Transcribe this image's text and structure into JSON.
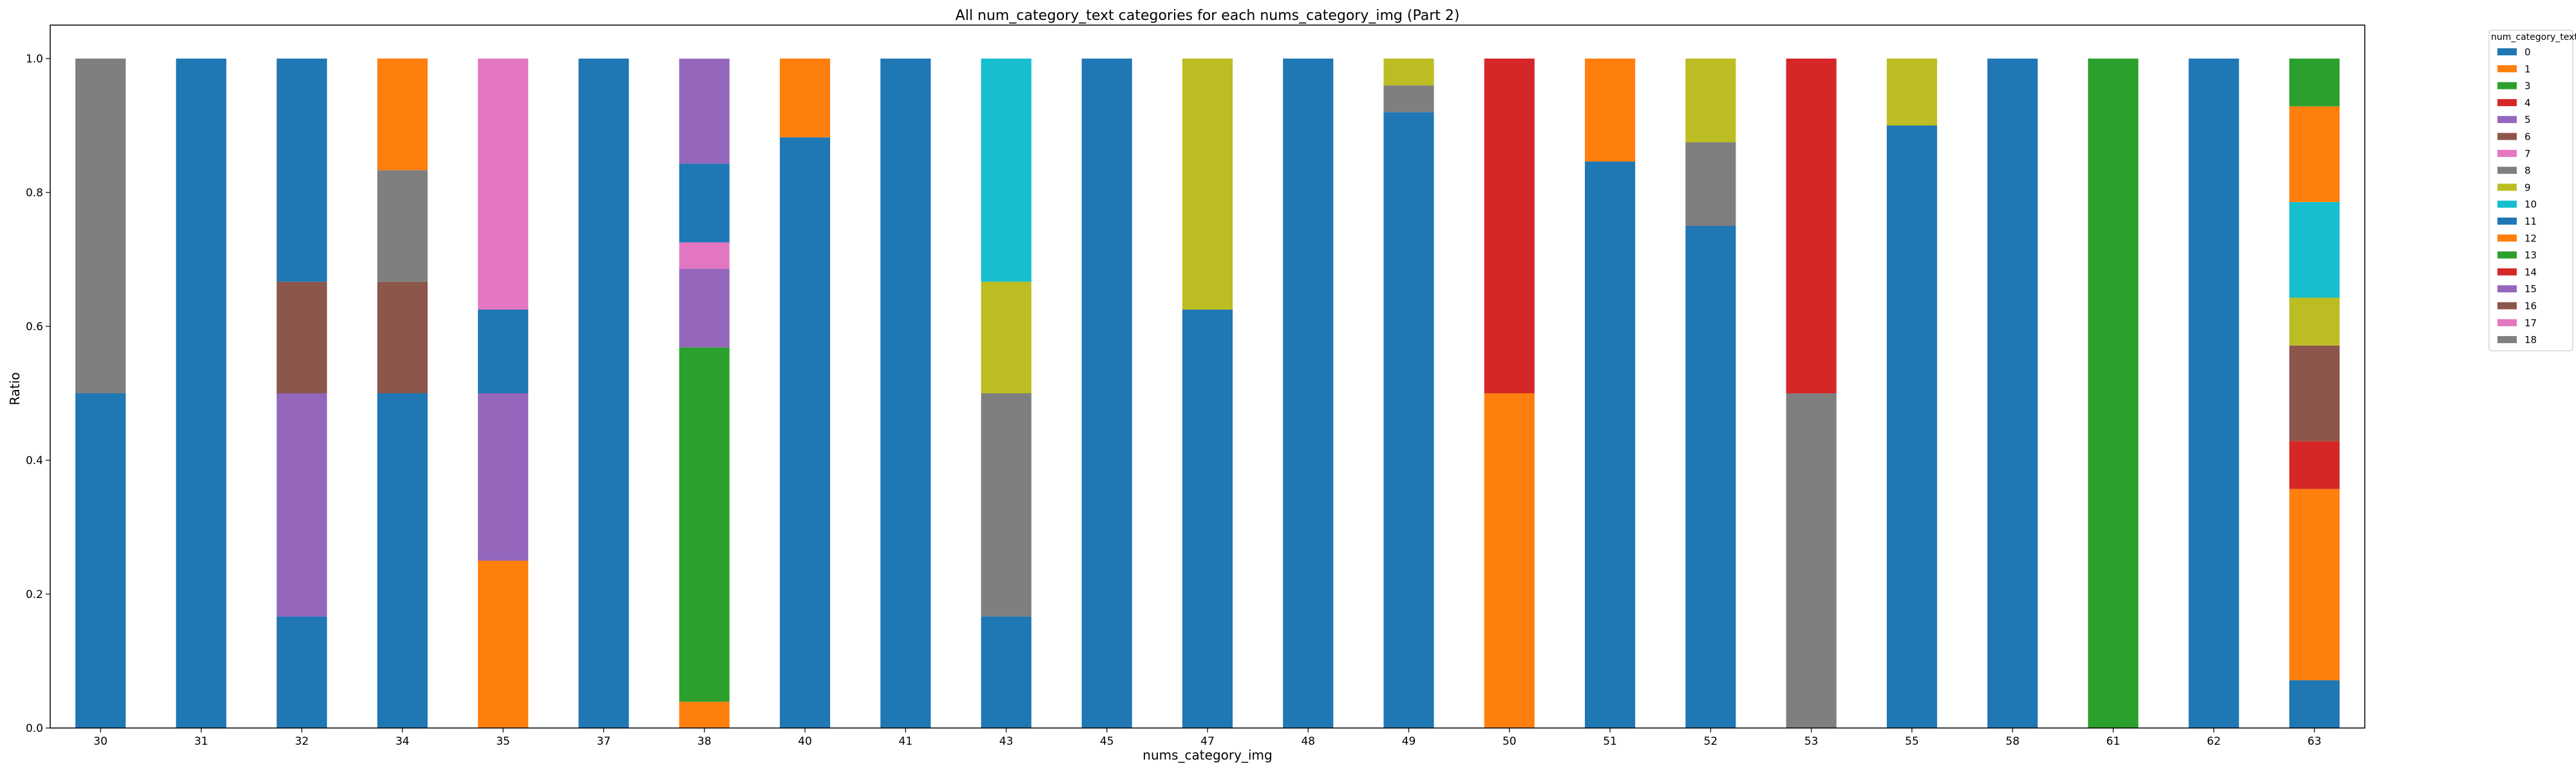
{
  "chart_data": {
    "type": "bar",
    "stacked": true,
    "title": "All num_category_text categories for each nums_category_img (Part 2)",
    "xlabel": "nums_category_img",
    "ylabel": "Ratio",
    "ylim": [
      0,
      1.05
    ],
    "yticks": [
      "0.0",
      "0.2",
      "0.4",
      "0.6",
      "0.8",
      "1.0"
    ],
    "grid": false,
    "legend": {
      "title": "num_category_text",
      "placement": "outside-top-right",
      "entries": [
        {
          "label": "0",
          "color": "#1f77b4"
        },
        {
          "label": "1",
          "color": "#ff7f0e"
        },
        {
          "label": "3",
          "color": "#2ca02c"
        },
        {
          "label": "4",
          "color": "#d62728"
        },
        {
          "label": "5",
          "color": "#9467bd"
        },
        {
          "label": "6",
          "color": "#8c564b"
        },
        {
          "label": "7",
          "color": "#e377c2"
        },
        {
          "label": "8",
          "color": "#7f7f7f"
        },
        {
          "label": "9",
          "color": "#bcbd22"
        },
        {
          "label": "10",
          "color": "#17becf"
        },
        {
          "label": "11",
          "color": "#1f77b4"
        },
        {
          "label": "12",
          "color": "#ff7f0e"
        },
        {
          "label": "13",
          "color": "#2ca02c"
        },
        {
          "label": "14",
          "color": "#d62728"
        },
        {
          "label": "15",
          "color": "#9467bd"
        },
        {
          "label": "16",
          "color": "#8c564b"
        },
        {
          "label": "17",
          "color": "#e377c2"
        },
        {
          "label": "18",
          "color": "#7f7f7f"
        }
      ]
    },
    "categories": [
      "30",
      "31",
      "32",
      "34",
      "35",
      "37",
      "38",
      "40",
      "41",
      "43",
      "45",
      "47",
      "48",
      "49",
      "50",
      "51",
      "52",
      "53",
      "55",
      "58",
      "61",
      "62",
      "63"
    ],
    "stacks": [
      [
        {
          "color": "#1f77b4",
          "value": 0.5
        },
        {
          "color": "#7f7f7f",
          "value": 0.5
        }
      ],
      [
        {
          "color": "#1f77b4",
          "value": 1.0
        }
      ],
      [
        {
          "color": "#1f77b4",
          "value": 0.1667
        },
        {
          "color": "#9467bd",
          "value": 0.3333
        },
        {
          "color": "#8c564b",
          "value": 0.1667
        },
        {
          "color": "#1f77b4",
          "value": 0.3333
        }
      ],
      [
        {
          "color": "#1f77b4",
          "value": 0.5
        },
        {
          "color": "#8c564b",
          "value": 0.1667
        },
        {
          "color": "#7f7f7f",
          "value": 0.1667
        },
        {
          "color": "#ff7f0e",
          "value": 0.1667
        }
      ],
      [
        {
          "color": "#ff7f0e",
          "value": 0.25
        },
        {
          "color": "#9467bd",
          "value": 0.25
        },
        {
          "color": "#1f77b4",
          "value": 0.125
        },
        {
          "color": "#e377c2",
          "value": 0.375
        }
      ],
      [
        {
          "color": "#1f77b4",
          "value": 1.0
        }
      ],
      [
        {
          "color": "#ff7f0e",
          "value": 0.0392
        },
        {
          "color": "#2ca02c",
          "value": 0.5294
        },
        {
          "color": "#9467bd",
          "value": 0.1176
        },
        {
          "color": "#e377c2",
          "value": 0.0392
        },
        {
          "color": "#1f77b4",
          "value": 0.1176
        },
        {
          "color": "#9467bd",
          "value": 0.1569
        }
      ],
      [
        {
          "color": "#1f77b4",
          "value": 0.8824
        },
        {
          "color": "#ff7f0e",
          "value": 0.1176
        }
      ],
      [
        {
          "color": "#1f77b4",
          "value": 1.0
        }
      ],
      [
        {
          "color": "#1f77b4",
          "value": 0.1667
        },
        {
          "color": "#7f7f7f",
          "value": 0.3333
        },
        {
          "color": "#bcbd22",
          "value": 0.1667
        },
        {
          "color": "#17becf",
          "value": 0.3333
        }
      ],
      [
        {
          "color": "#1f77b4",
          "value": 1.0
        }
      ],
      [
        {
          "color": "#1f77b4",
          "value": 0.625
        },
        {
          "color": "#bcbd22",
          "value": 0.375
        }
      ],
      [
        {
          "color": "#1f77b4",
          "value": 1.0
        }
      ],
      [
        {
          "color": "#1f77b4",
          "value": 0.92
        },
        {
          "color": "#7f7f7f",
          "value": 0.04
        },
        {
          "color": "#bcbd22",
          "value": 0.04
        }
      ],
      [
        {
          "color": "#ff7f0e",
          "value": 0.5
        },
        {
          "color": "#d62728",
          "value": 0.5
        }
      ],
      [
        {
          "color": "#1f77b4",
          "value": 0.8462
        },
        {
          "color": "#ff7f0e",
          "value": 0.1538
        }
      ],
      [
        {
          "color": "#1f77b4",
          "value": 0.75
        },
        {
          "color": "#7f7f7f",
          "value": 0.125
        },
        {
          "color": "#bcbd22",
          "value": 0.125
        }
      ],
      [
        {
          "color": "#7f7f7f",
          "value": 0.5
        },
        {
          "color": "#d62728",
          "value": 0.5
        }
      ],
      [
        {
          "color": "#1f77b4",
          "value": 0.9
        },
        {
          "color": "#bcbd22",
          "value": 0.1
        }
      ],
      [
        {
          "color": "#1f77b4",
          "value": 1.0
        }
      ],
      [
        {
          "color": "#2ca02c",
          "value": 1.0
        }
      ],
      [
        {
          "color": "#1f77b4",
          "value": 1.0
        }
      ],
      [
        {
          "color": "#1f77b4",
          "value": 0.0714
        },
        {
          "color": "#ff7f0e",
          "value": 0.2857
        },
        {
          "color": "#d62728",
          "value": 0.0714
        },
        {
          "color": "#8c564b",
          "value": 0.1429
        },
        {
          "color": "#bcbd22",
          "value": 0.0714
        },
        {
          "color": "#17becf",
          "value": 0.1429
        },
        {
          "color": "#ff7f0e",
          "value": 0.1429
        },
        {
          "color": "#2ca02c",
          "value": 0.0714
        }
      ]
    ]
  }
}
